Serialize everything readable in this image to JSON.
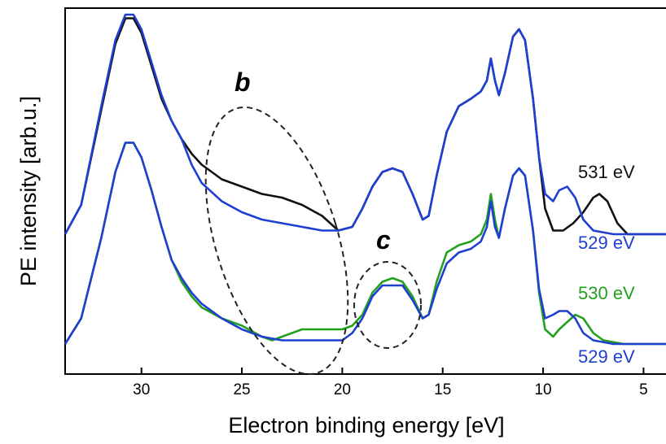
{
  "chart_data": {
    "type": "line",
    "title": "",
    "xlabel": "Electron binding energy [eV]",
    "ylabel": "PE intensity [arb.u.]",
    "xlim": [
      33.8,
      3.8
    ],
    "x_reversed": true,
    "ylim": [
      0,
      1
    ],
    "y_ticks_shown": false,
    "grid": false,
    "x_ticks": [
      30,
      25,
      20,
      15,
      10,
      5
    ],
    "series": [
      {
        "name": "531 eV",
        "group": "upper",
        "color": "#111111",
        "points": [
          [
            33.8,
            0.36
          ],
          [
            33.0,
            0.44
          ],
          [
            32.0,
            0.7
          ],
          [
            31.3,
            0.88
          ],
          [
            30.8,
            0.95
          ],
          [
            30.4,
            0.95
          ],
          [
            30.0,
            0.91
          ],
          [
            29.5,
            0.82
          ],
          [
            29.0,
            0.73
          ],
          [
            28.5,
            0.67
          ],
          [
            28.0,
            0.62
          ],
          [
            27.5,
            0.58
          ],
          [
            27.0,
            0.55
          ],
          [
            26.5,
            0.53
          ],
          [
            26.0,
            0.51
          ],
          [
            25.0,
            0.49
          ],
          [
            24.0,
            0.47
          ],
          [
            23.0,
            0.46
          ],
          [
            22.0,
            0.44
          ],
          [
            21.0,
            0.41
          ],
          [
            20.2,
            0.37
          ],
          [
            19.5,
            0.38
          ],
          [
            19.0,
            0.43
          ],
          [
            18.5,
            0.49
          ],
          [
            18.0,
            0.53
          ],
          [
            17.5,
            0.54
          ],
          [
            17.0,
            0.53
          ],
          [
            16.5,
            0.47
          ],
          [
            16.0,
            0.4
          ],
          [
            15.7,
            0.41
          ],
          [
            15.3,
            0.52
          ],
          [
            14.8,
            0.64
          ],
          [
            14.2,
            0.71
          ],
          [
            13.6,
            0.73
          ],
          [
            13.1,
            0.75
          ],
          [
            12.8,
            0.78
          ],
          [
            12.6,
            0.84
          ],
          [
            12.4,
            0.78
          ],
          [
            12.2,
            0.74
          ],
          [
            11.9,
            0.8
          ],
          [
            11.5,
            0.9
          ],
          [
            11.2,
            0.92
          ],
          [
            10.9,
            0.89
          ],
          [
            10.5,
            0.73
          ],
          [
            10.2,
            0.57
          ],
          [
            9.9,
            0.43
          ],
          [
            9.5,
            0.37
          ],
          [
            9.0,
            0.37
          ],
          [
            8.5,
            0.39
          ],
          [
            8.0,
            0.42
          ],
          [
            7.5,
            0.46
          ],
          [
            7.2,
            0.47
          ],
          [
            6.8,
            0.45
          ],
          [
            6.3,
            0.39
          ],
          [
            5.8,
            0.36
          ],
          [
            5.0,
            0.36
          ],
          [
            3.8,
            0.36
          ]
        ]
      },
      {
        "name": "529 eV",
        "group": "upper",
        "color": "#1f3fd1",
        "points": [
          [
            33.8,
            0.36
          ],
          [
            33.0,
            0.44
          ],
          [
            32.0,
            0.71
          ],
          [
            31.3,
            0.89
          ],
          [
            30.8,
            0.96
          ],
          [
            30.4,
            0.96
          ],
          [
            30.0,
            0.92
          ],
          [
            29.5,
            0.83
          ],
          [
            29.0,
            0.74
          ],
          [
            28.5,
            0.67
          ],
          [
            28.0,
            0.62
          ],
          [
            27.5,
            0.55
          ],
          [
            27.0,
            0.5
          ],
          [
            26.0,
            0.45
          ],
          [
            25.0,
            0.42
          ],
          [
            24.0,
            0.4
          ],
          [
            23.0,
            0.39
          ],
          [
            22.0,
            0.38
          ],
          [
            21.0,
            0.37
          ],
          [
            20.2,
            0.37
          ],
          [
            19.5,
            0.38
          ],
          [
            19.0,
            0.43
          ],
          [
            18.5,
            0.49
          ],
          [
            18.0,
            0.53
          ],
          [
            17.5,
            0.54
          ],
          [
            17.0,
            0.53
          ],
          [
            16.5,
            0.47
          ],
          [
            16.0,
            0.4
          ],
          [
            15.7,
            0.41
          ],
          [
            15.3,
            0.52
          ],
          [
            14.8,
            0.64
          ],
          [
            14.2,
            0.71
          ],
          [
            13.6,
            0.73
          ],
          [
            13.1,
            0.75
          ],
          [
            12.8,
            0.78
          ],
          [
            12.6,
            0.84
          ],
          [
            12.4,
            0.78
          ],
          [
            12.2,
            0.74
          ],
          [
            11.9,
            0.8
          ],
          [
            11.5,
            0.9
          ],
          [
            11.2,
            0.92
          ],
          [
            10.9,
            0.89
          ],
          [
            10.5,
            0.73
          ],
          [
            10.2,
            0.57
          ],
          [
            9.9,
            0.47
          ],
          [
            9.5,
            0.45
          ],
          [
            9.2,
            0.48
          ],
          [
            8.8,
            0.49
          ],
          [
            8.4,
            0.46
          ],
          [
            8.0,
            0.4
          ],
          [
            7.5,
            0.37
          ],
          [
            6.5,
            0.36
          ],
          [
            5.0,
            0.36
          ],
          [
            3.8,
            0.36
          ]
        ]
      },
      {
        "name": "530 eV",
        "group": "lower",
        "color": "#22a01e",
        "points": [
          [
            33.8,
            0.06
          ],
          [
            33.0,
            0.13
          ],
          [
            32.0,
            0.35
          ],
          [
            31.3,
            0.53
          ],
          [
            30.8,
            0.61
          ],
          [
            30.4,
            0.61
          ],
          [
            30.0,
            0.57
          ],
          [
            29.5,
            0.48
          ],
          [
            29.0,
            0.38
          ],
          [
            28.5,
            0.29
          ],
          [
            28.0,
            0.23
          ],
          [
            27.5,
            0.19
          ],
          [
            27.0,
            0.16
          ],
          [
            26.0,
            0.13
          ],
          [
            25.0,
            0.11
          ],
          [
            24.0,
            0.08
          ],
          [
            23.5,
            0.07
          ],
          [
            23.0,
            0.08
          ],
          [
            22.5,
            0.09
          ],
          [
            22.0,
            0.1
          ],
          [
            21.5,
            0.1
          ],
          [
            21.0,
            0.1
          ],
          [
            20.0,
            0.1
          ],
          [
            19.5,
            0.11
          ],
          [
            19.0,
            0.14
          ],
          [
            18.5,
            0.2
          ],
          [
            18.0,
            0.23
          ],
          [
            17.5,
            0.24
          ],
          [
            17.0,
            0.23
          ],
          [
            16.5,
            0.19
          ],
          [
            16.0,
            0.13
          ],
          [
            15.7,
            0.14
          ],
          [
            15.3,
            0.23
          ],
          [
            14.8,
            0.31
          ],
          [
            14.2,
            0.33
          ],
          [
            13.6,
            0.34
          ],
          [
            13.1,
            0.36
          ],
          [
            12.8,
            0.4
          ],
          [
            12.6,
            0.47
          ],
          [
            12.4,
            0.4
          ],
          [
            12.2,
            0.35
          ],
          [
            11.9,
            0.43
          ],
          [
            11.5,
            0.52
          ],
          [
            11.2,
            0.54
          ],
          [
            10.9,
            0.52
          ],
          [
            10.5,
            0.37
          ],
          [
            10.2,
            0.2
          ],
          [
            9.9,
            0.1
          ],
          [
            9.5,
            0.08
          ],
          [
            9.2,
            0.1
          ],
          [
            8.8,
            0.12
          ],
          [
            8.4,
            0.14
          ],
          [
            8.0,
            0.13
          ],
          [
            7.5,
            0.09
          ],
          [
            7.0,
            0.07
          ],
          [
            6.0,
            0.06
          ],
          [
            5.0,
            0.06
          ],
          [
            3.8,
            0.06
          ]
        ]
      },
      {
        "name": "529 eV",
        "group": "lower",
        "color": "#1f3fd1",
        "points": [
          [
            33.8,
            0.06
          ],
          [
            33.0,
            0.13
          ],
          [
            32.0,
            0.35
          ],
          [
            31.3,
            0.53
          ],
          [
            30.8,
            0.61
          ],
          [
            30.4,
            0.61
          ],
          [
            30.0,
            0.57
          ],
          [
            29.5,
            0.48
          ],
          [
            29.0,
            0.38
          ],
          [
            28.5,
            0.29
          ],
          [
            28.0,
            0.24
          ],
          [
            27.5,
            0.2
          ],
          [
            27.0,
            0.17
          ],
          [
            26.0,
            0.13
          ],
          [
            25.0,
            0.1
          ],
          [
            24.0,
            0.08
          ],
          [
            23.0,
            0.07
          ],
          [
            22.0,
            0.07
          ],
          [
            21.0,
            0.07
          ],
          [
            20.0,
            0.07
          ],
          [
            19.5,
            0.09
          ],
          [
            19.0,
            0.13
          ],
          [
            18.5,
            0.19
          ],
          [
            18.0,
            0.22
          ],
          [
            17.5,
            0.22
          ],
          [
            17.0,
            0.22
          ],
          [
            16.5,
            0.18
          ],
          [
            16.0,
            0.13
          ],
          [
            15.7,
            0.14
          ],
          [
            15.3,
            0.21
          ],
          [
            14.8,
            0.28
          ],
          [
            14.2,
            0.31
          ],
          [
            13.6,
            0.32
          ],
          [
            13.1,
            0.34
          ],
          [
            12.8,
            0.38
          ],
          [
            12.6,
            0.45
          ],
          [
            12.4,
            0.38
          ],
          [
            12.2,
            0.35
          ],
          [
            11.9,
            0.43
          ],
          [
            11.5,
            0.52
          ],
          [
            11.2,
            0.54
          ],
          [
            10.9,
            0.52
          ],
          [
            10.5,
            0.37
          ],
          [
            10.2,
            0.21
          ],
          [
            9.9,
            0.13
          ],
          [
            9.5,
            0.14
          ],
          [
            9.2,
            0.15
          ],
          [
            8.8,
            0.15
          ],
          [
            8.4,
            0.13
          ],
          [
            8.0,
            0.09
          ],
          [
            7.5,
            0.07
          ],
          [
            6.5,
            0.06
          ],
          [
            5.0,
            0.06
          ],
          [
            3.8,
            0.06
          ]
        ]
      }
    ],
    "annotations": [
      {
        "label": "b",
        "shape": "dashed-ellipse"
      },
      {
        "label": "c",
        "shape": "dashed-ellipse"
      }
    ],
    "series_labels": [
      "531 eV",
      "529 eV",
      "530 eV",
      "529 eV"
    ]
  }
}
